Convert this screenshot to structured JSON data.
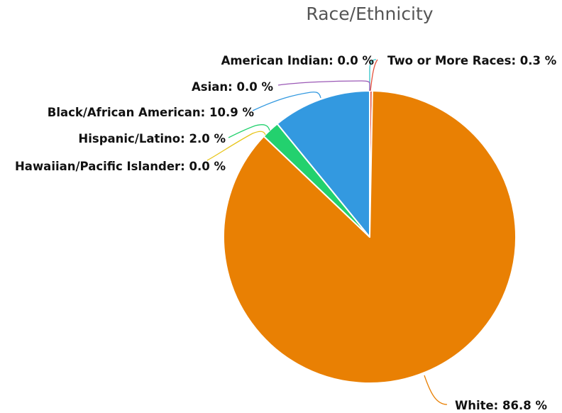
{
  "chart_data": {
    "type": "pie",
    "title": "Race/Ethnicity",
    "slices": [
      {
        "name": "American Indian",
        "value": 0.0,
        "label": "American Indian: 0.0 %",
        "color": "#2ec4c8"
      },
      {
        "name": "Two or More Races",
        "value": 0.3,
        "label": "Two or More Races: 0.3 %",
        "color": "#e5533d"
      },
      {
        "name": "White",
        "value": 86.8,
        "label": "White: 86.8 %",
        "color": "#e98003"
      },
      {
        "name": "Hawaiian/Pacific Islander",
        "value": 0.0,
        "label": "Hawaiian/Pacific Islander: 0.0 %",
        "color": "#e8c51a"
      },
      {
        "name": "Hispanic/Latino",
        "value": 2.0,
        "label": "Hispanic/Latino: 2.0 %",
        "color": "#23d16e"
      },
      {
        "name": "Black/African American",
        "value": 10.9,
        "label": "Black/African American: 10.9 %",
        "color": "#3399e0"
      },
      {
        "name": "Asian",
        "value": 0.0,
        "label": "Asian: 0.0 %",
        "color": "#9b59b6"
      }
    ],
    "legend": "none"
  }
}
